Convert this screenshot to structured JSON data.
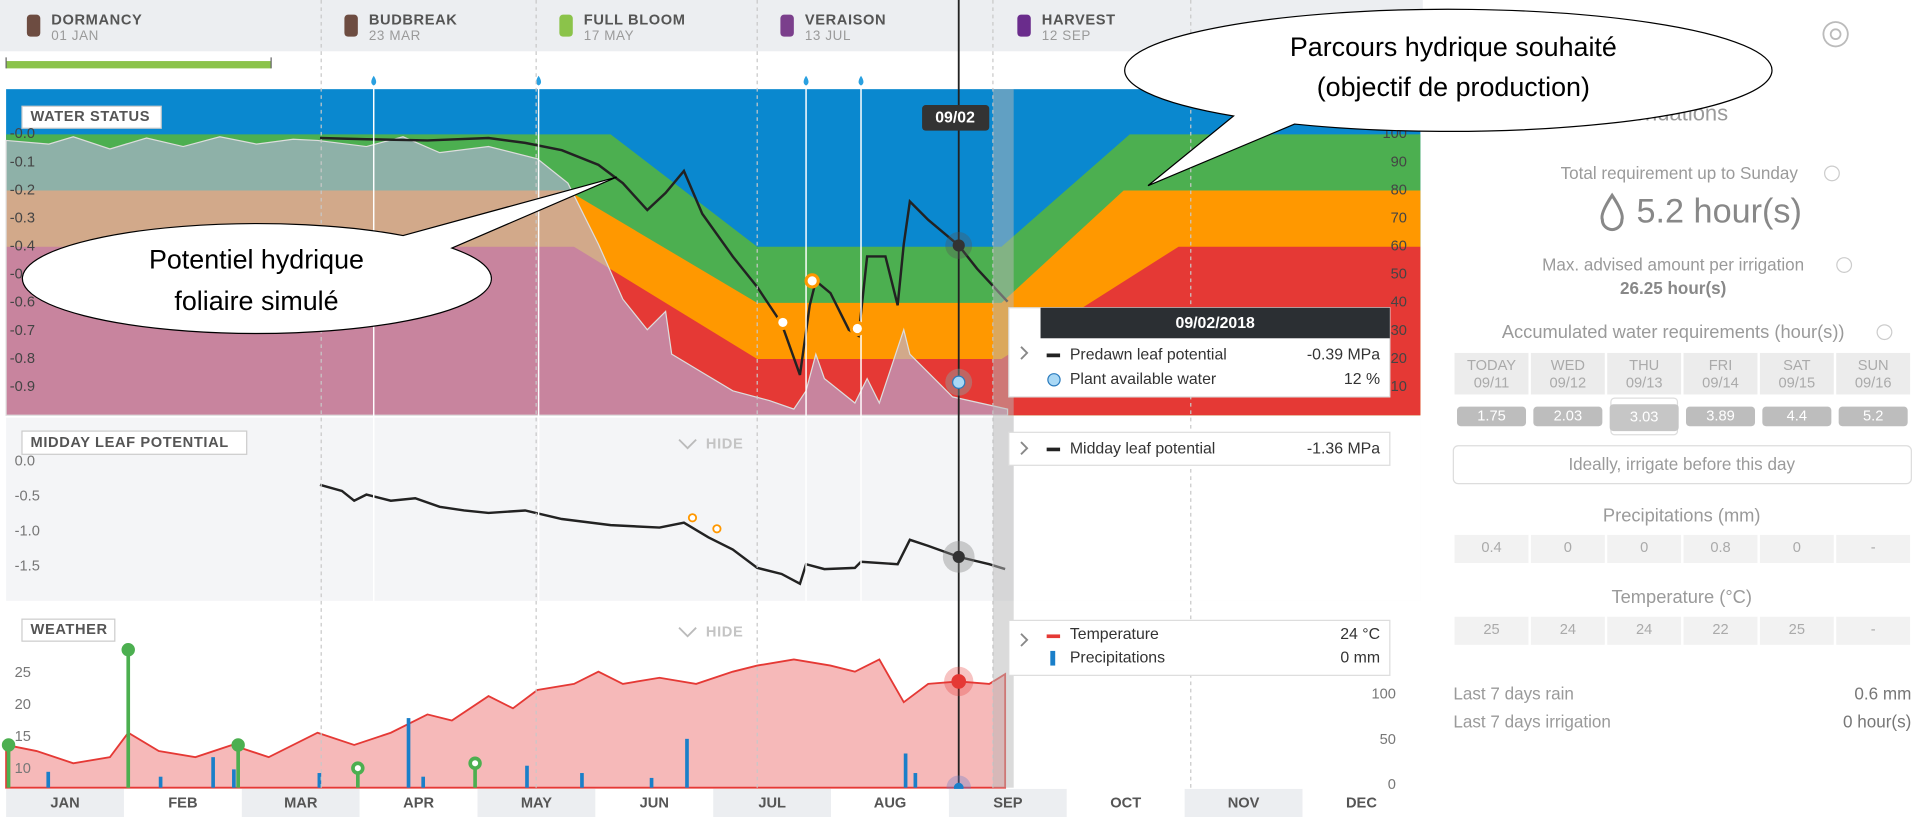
{
  "phenology": [
    {
      "name": "DORMANCY",
      "date": "01 JAN"
    },
    {
      "name": "BUDBREAK",
      "date": "23 MAR"
    },
    {
      "name": "FULL BLOOM",
      "date": "17 MAY"
    },
    {
      "name": "VERAISON",
      "date": "13 JUL"
    },
    {
      "name": "HARVEST",
      "date": "12 SEP"
    }
  ],
  "water_status": {
    "title": "WATER STATUS",
    "cursor_date": "09/02",
    "left_ticks": [
      "-0.0",
      "-0.1",
      "-0.2",
      "-0.3",
      "-0.4",
      "-0.5",
      "-0.6",
      "-0.7",
      "-0.8",
      "-0.9"
    ],
    "right_ticks": [
      "100",
      "90",
      "80",
      "70",
      "60",
      "50",
      "40",
      "30",
      "20",
      "10"
    ],
    "tooltip": {
      "date": "09/02/2018",
      "rows": [
        {
          "label": "Predawn leaf potential",
          "value": "-0.39 MPa"
        },
        {
          "label": "Plant available water",
          "value": "12 %"
        }
      ]
    }
  },
  "midday": {
    "title": "MIDDAY LEAF POTENTIAL",
    "hide": "HIDE",
    "ticks": [
      "0.0",
      "-0.5",
      "-1.0",
      "-1.5"
    ],
    "tooltip": {
      "rows": [
        {
          "label": "Midday leaf potential",
          "value": "-1.36 MPa"
        }
      ]
    }
  },
  "weather": {
    "title": "WEATHER",
    "hide": "HIDE",
    "left_ticks": [
      "25",
      "20",
      "15",
      "10"
    ],
    "right_ticks": [
      "100",
      "50",
      "0"
    ],
    "tooltip": {
      "rows": [
        {
          "label": "Temperature",
          "value": "24 °C"
        },
        {
          "label": "Precipitations",
          "value": "0 mm"
        }
      ]
    }
  },
  "months": [
    "JAN",
    "FEB",
    "MAR",
    "APR",
    "MAY",
    "JUN",
    "JUL",
    "AUG",
    "SEP",
    "OCT",
    "NOV",
    "DEC"
  ],
  "recommendations": {
    "title": "Recommendations",
    "total_label": "Total requirement up to Sunday",
    "total_value": "5.2 hour(s)",
    "max_label": "Max. advised amount per irrigation",
    "max_value": "26.25 hour(s)",
    "accumulated_label": "Accumulated water requirements (hour(s))",
    "days": [
      {
        "name": "TODAY",
        "date": "09/11",
        "value": "1.75"
      },
      {
        "name": "WED",
        "date": "09/12",
        "value": "2.03"
      },
      {
        "name": "THU",
        "date": "09/13",
        "value": "3.03"
      },
      {
        "name": "FRI",
        "date": "09/14",
        "value": "3.89"
      },
      {
        "name": "SAT",
        "date": "09/15",
        "value": "4.4"
      },
      {
        "name": "SUN",
        "date": "09/16",
        "value": "5.2"
      }
    ],
    "irrigate_note": "Ideally, irrigate before this day",
    "precip_title": "Precipitations (mm)",
    "precip": [
      "0.4",
      "0",
      "0",
      "0.8",
      "0",
      "-"
    ],
    "temp_title": "Temperature (°C)",
    "temp": [
      "25",
      "24",
      "24",
      "22",
      "25",
      "-"
    ],
    "rain_label": "Last 7 days rain",
    "rain_value": "0.6 mm",
    "irrigation_label": "Last 7 days irrigation",
    "irrigation_value": "0 hour(s)"
  },
  "annotations": {
    "desired": [
      "Parcours hydrique souhaité",
      "(objectif de production)"
    ],
    "simulated": [
      "Potentiel hydrique",
      "foliaire simulé"
    ]
  }
}
